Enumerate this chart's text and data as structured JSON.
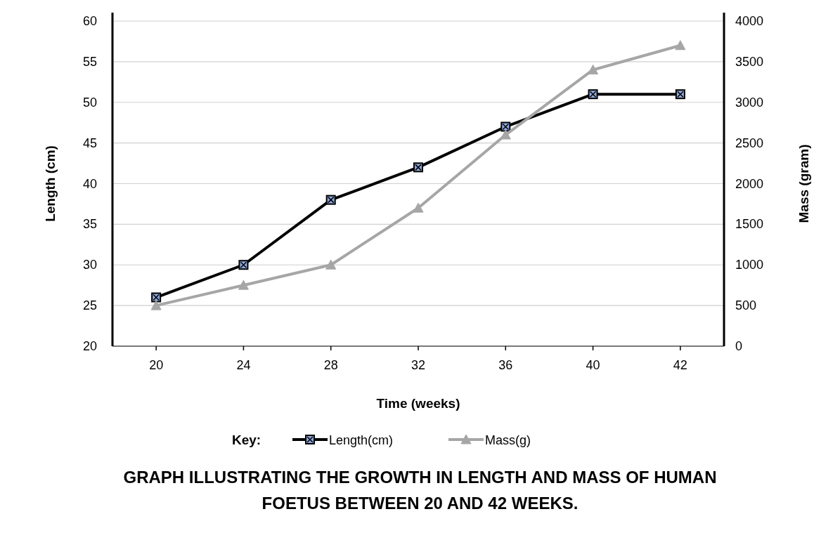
{
  "chart_data": {
    "type": "line",
    "title": "GRAPH ILLUSTRATING THE GROWTH IN LENGTH AND MASS OF HUMAN FOETUS BETWEEN 20 AND 42 WEEKS.",
    "xlabel": "Time (weeks)",
    "ylabel": "Length (cm)",
    "y2label": "Mass (gram)",
    "legend_title": "Key:",
    "categories": [
      "20",
      "24",
      "28",
      "32",
      "36",
      "40",
      "42"
    ],
    "series": [
      {
        "name": "Length(cm)",
        "color": "#000000",
        "marker": "square",
        "values": [
          26,
          30,
          38,
          42,
          47,
          51,
          51
        ]
      },
      {
        "name": "Mass(g)",
        "color": "#a6a6a6",
        "marker": "triangle",
        "axis": "y2",
        "values": [
          500,
          750,
          1000,
          1700,
          2600,
          3400,
          3700
        ]
      }
    ],
    "ylim": [
      20,
      60
    ],
    "yticks": [
      20,
      25,
      30,
      35,
      40,
      45,
      50,
      55,
      60
    ],
    "y2lim": [
      0,
      4000
    ],
    "y2ticks": [
      0,
      500,
      1000,
      1500,
      2000,
      2500,
      3000,
      3500,
      4000
    ],
    "grid": "y",
    "legend": "bottom"
  }
}
